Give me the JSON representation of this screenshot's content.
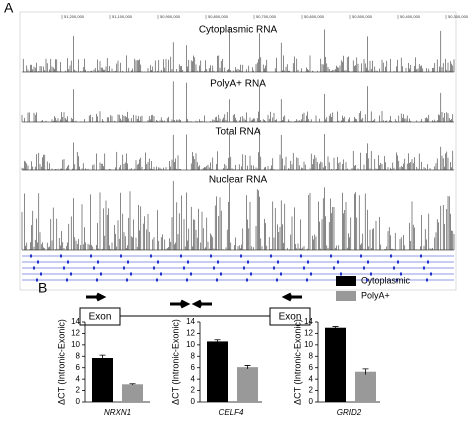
{
  "panel_a": {
    "label": "A",
    "tracks": [
      "Cytoplasmic RNA",
      "PolyA+ RNA",
      "Total RNA",
      "Nuclear RNA"
    ],
    "coordinates": [
      "51,200,000",
      "51,100,000",
      "50,900,000",
      "50,800,000",
      "50,700,000",
      "50,600,000",
      "50,500,000",
      "50,400,000",
      "50,300,000"
    ]
  },
  "panel_b": {
    "label": "B",
    "exon_left": "Exon",
    "exon_right": "Exon"
  },
  "chart_data": [
    {
      "type": "bar",
      "ylabel": "ΔCT (Intronic-Exonic)",
      "xlabel": "NRXN1",
      "ylim": [
        0,
        14
      ],
      "yticks": [
        0,
        2,
        4,
        6,
        8,
        10,
        12,
        14
      ],
      "series": [
        {
          "name": "Cytoplasmic",
          "color": "#000000",
          "values": [
            7.7
          ],
          "errors": [
            0.5
          ]
        },
        {
          "name": "PolyA+",
          "color": "#999999",
          "values": [
            3.1
          ],
          "errors": [
            0.1
          ]
        }
      ]
    },
    {
      "type": "bar",
      "ylabel": "ΔCT (Intronic-Exonic)",
      "xlabel": "CELF4",
      "ylim": [
        0,
        14
      ],
      "yticks": [
        0,
        2,
        4,
        6,
        8,
        10,
        12,
        14
      ],
      "series": [
        {
          "name": "Cytoplasmic",
          "color": "#000000",
          "values": [
            10.6
          ],
          "errors": [
            0.3
          ]
        },
        {
          "name": "PolyA+",
          "color": "#999999",
          "values": [
            6.1
          ],
          "errors": [
            0.3
          ]
        }
      ]
    },
    {
      "type": "bar",
      "ylabel": "ΔCT (Intronic-Exonic)",
      "xlabel": "GRID2",
      "ylim": [
        0,
        14
      ],
      "yticks": [
        0,
        2,
        4,
        6,
        8,
        10,
        12,
        14
      ],
      "series": [
        {
          "name": "Cytoplasmic",
          "color": "#000000",
          "values": [
            13.0
          ],
          "errors": [
            0.2
          ]
        },
        {
          "name": "PolyA+",
          "color": "#999999",
          "values": [
            5.3
          ],
          "errors": [
            0.5
          ]
        }
      ]
    }
  ]
}
